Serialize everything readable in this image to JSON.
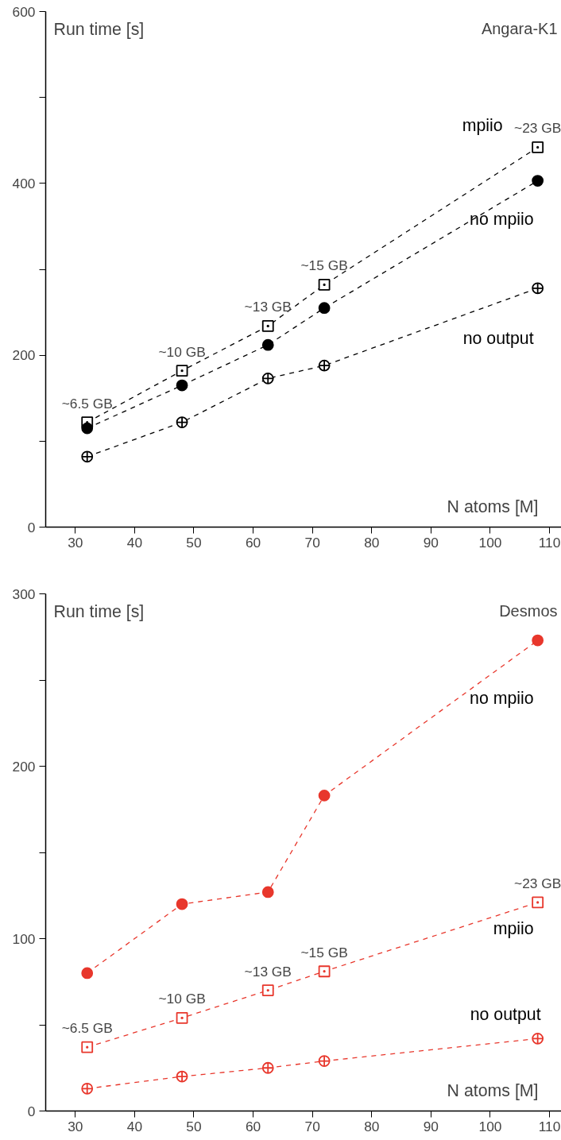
{
  "chart_data": [
    {
      "type": "line",
      "title": "Angara-K1",
      "xlabel": "N atoms [M]",
      "ylabel": "Run time [s]",
      "x": [
        32,
        48,
        62.5,
        72,
        108
      ],
      "xlim": [
        25,
        112
      ],
      "xticks": [
        30,
        40,
        50,
        60,
        70,
        80,
        90,
        100,
        110
      ],
      "ylim": [
        0,
        600
      ],
      "yticks": [
        0,
        {
          "value": 100,
          "label": null
        },
        200,
        {
          "value": 300,
          "label": null
        },
        400,
        {
          "value": 500,
          "label": null
        },
        600
      ],
      "grid": false,
      "line_style": "dashed",
      "series": [
        {
          "name": "mpiio",
          "color": "#000000",
          "marker": "square",
          "values": [
            122,
            182,
            234,
            282,
            442
          ]
        },
        {
          "name": "no mpiio",
          "color": "#000000",
          "marker": "circle",
          "values": [
            115,
            165,
            212,
            255,
            403
          ]
        },
        {
          "name": "no output",
          "color": "#000000",
          "marker": "circle",
          "values": [
            82,
            122,
            173,
            188,
            278
          ]
        }
      ],
      "annotations": [
        {
          "text": "~6.5 GB",
          "x": 32,
          "y": 122
        },
        {
          "text": "~10 GB",
          "x": 48,
          "y": 182
        },
        {
          "text": "~13 GB",
          "x": 62.5,
          "y": 234
        },
        {
          "text": "~15 GB",
          "x": 72,
          "y": 282
        },
        {
          "text": "~23 GB",
          "x": 108,
          "y": 442
        }
      ]
    },
    {
      "type": "line",
      "title": "Desmos",
      "xlabel": "N atoms [M]",
      "ylabel": "Run time [s]",
      "x": [
        32,
        48,
        62.5,
        72,
        108
      ],
      "xlim": [
        25,
        112
      ],
      "xticks": [
        30,
        40,
        50,
        60,
        70,
        80,
        90,
        100,
        110
      ],
      "ylim": [
        0,
        300
      ],
      "yticks": [
        0,
        {
          "value": 50,
          "label": null
        },
        100,
        {
          "value": 150,
          "label": null
        },
        200,
        {
          "value": 250,
          "label": null
        },
        300
      ],
      "grid": false,
      "line_style": "dashed",
      "series": [
        {
          "name": "no mpiio",
          "color": "#e8372c",
          "marker": "circle",
          "values": [
            80,
            120,
            127,
            183,
            273
          ]
        },
        {
          "name": "mpiio",
          "color": "#e8372c",
          "marker": "square",
          "values": [
            37,
            54,
            70,
            81,
            121
          ]
        },
        {
          "name": "no output",
          "color": "#e8372c",
          "marker": "circle",
          "values": [
            13,
            20,
            25,
            29,
            42
          ]
        }
      ],
      "annotations": [
        {
          "text": "~6.5 GB",
          "x": 32,
          "y": 37
        },
        {
          "text": "~10 GB",
          "x": 48,
          "y": 54
        },
        {
          "text": "~13 GB",
          "x": 62.5,
          "y": 70
        },
        {
          "text": "~15 GB",
          "x": 72,
          "y": 81
        },
        {
          "text": "~23 GB",
          "x": 108,
          "y": 121
        }
      ]
    }
  ]
}
